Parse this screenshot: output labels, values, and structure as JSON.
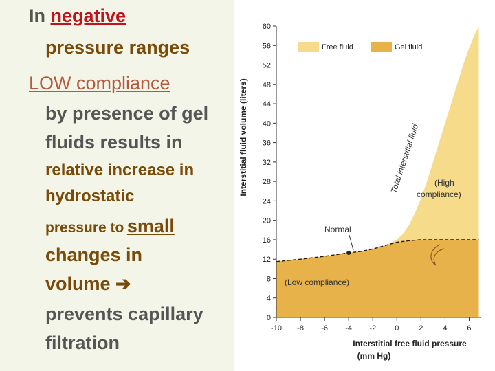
{
  "text": {
    "line1_a": "In",
    "line1_b": "negative",
    "line2": "pressure ranges",
    "line3": "LOW compliance",
    "line4": "by presence of gel",
    "line5": "fluids results in",
    "line6": "relative increase in",
    "line7": "hydrostatic",
    "line8_a": "pressure to",
    "line8_b": "small",
    "line9": "changes in",
    "line10": "volume",
    "line11": "prevents capillary",
    "line12": "filtration"
  },
  "colors": {
    "left_panel_bg": "#f2f5e8",
    "gel_fluid": "#e8b24a",
    "free_fluid": "#f6dc8a",
    "highlight_red": "#c0141c",
    "highlight_pink": "#b8583d",
    "body_text": "#555555",
    "orange_text": "#7a4a08"
  },
  "chart_data": {
    "type": "area",
    "xlabel": "Interstitial free fluid pressure",
    "xlabel2": "(mm Hg)",
    "ylabel": "Interstitial fluid volume (liters)",
    "x_ticks": [
      "-10",
      "-8",
      "-6",
      "-4",
      "-2",
      "0",
      "2",
      "4",
      "6"
    ],
    "y_ticks": [
      "0",
      "4",
      "8",
      "12",
      "16",
      "20",
      "24",
      "28",
      "32",
      "36",
      "40",
      "44",
      "48",
      "52",
      "56",
      "60"
    ],
    "xlim": [
      -10,
      7
    ],
    "ylim": [
      0,
      60
    ],
    "legend": {
      "position": "top",
      "items": [
        {
          "label": "Free fluid"
        },
        {
          "label": "Gel fluid"
        }
      ]
    },
    "series": [
      {
        "name": "Total interstitial fluid",
        "x": [
          -10,
          -8,
          -6,
          -4,
          -3,
          -2,
          -1,
          0,
          0.5,
          1,
          1.5,
          2,
          2.5,
          3,
          3.5,
          4,
          4.5,
          5,
          5.5,
          6,
          6.5,
          6.8
        ],
        "y": [
          11.5,
          12,
          12.6,
          13.3,
          13.6,
          14.1,
          14.8,
          16,
          17.2,
          19,
          21.5,
          24.5,
          28,
          32,
          36,
          40,
          44,
          48,
          52,
          55.5,
          58.5,
          60
        ]
      },
      {
        "name": "Gel fluid",
        "x": [
          -10,
          -8,
          -6,
          -4,
          -3,
          -2,
          -1,
          0,
          1,
          2,
          3,
          4,
          5,
          6,
          6.8
        ],
        "y": [
          11.5,
          12,
          12.6,
          13.3,
          13.6,
          14.1,
          14.8,
          15.5,
          15.8,
          16,
          16,
          16,
          16,
          16,
          16
        ]
      }
    ],
    "annotations": [
      {
        "text": "Total interstitial fluid"
      },
      {
        "text": "(High",
        "text2": "compliance)"
      },
      {
        "text": "Normal",
        "point": {
          "x": -4,
          "y": 13.3
        }
      },
      {
        "text": "(Low compliance)"
      }
    ]
  }
}
